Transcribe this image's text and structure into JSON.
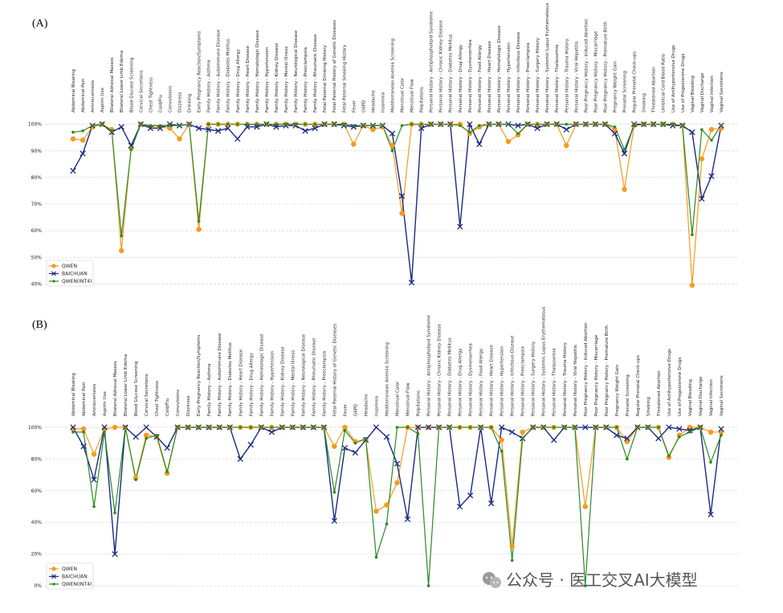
{
  "watermark": {
    "text": "公众号 · 医工交叉AI大模型",
    "icon": "wechat-icon"
  },
  "colors": {
    "QWEN": "#f59a1e",
    "BAICHUAN": "#1b2a80",
    "QWEN(INT4)": "#2a8a22"
  },
  "categories_a": [
    "Abdominal Bloating",
    "Abdominal Pain",
    "Amniocentesis",
    "Aspirin Use",
    "Bilateral Adnexal Masses",
    "Bilateral Lower Limb Edema",
    "Blood Glucose Screening",
    "Cervical Secretions",
    "Chest Tightness",
    "Cold/Flu",
    "Convulsions",
    "Dizziness",
    "Drinking",
    "Early Pregnancy Reaction/Symptoms",
    "Family History - Asthma",
    "Family History - Autoimmune Disease",
    "Family History - Diabetes Mellitus",
    "Family History - Drug Allergy",
    "Family History - Heart Disease",
    "Family History - Hematologic Disease",
    "Family History - Hypertension",
    "Family History - Kidney Disease",
    "Family History - Mental Illness",
    "Family History - Neurological Disease",
    "Family History - Preeclampsia",
    "Family History - Rheumatic Disease",
    "Fetal Paternal Drinking History",
    "Fetal Paternal History of Genetic Diseases",
    "Fetal Paternal Smoking History",
    "Fever",
    "G6PD",
    "Headache",
    "Insomnia",
    "Mediterranean Anemia Screening",
    "Menstrual Color",
    "Menstrual Flow",
    "Palpitations",
    "Personal History - Antiphospholipid Syndrome",
    "Personal History - Chronic Kidney Disease",
    "Personal History - Diabetes Mellitus",
    "Personal History - Drug Allergy",
    "Personal History - Dysmenorrhea",
    "Personal History - Food Allergy",
    "Personal History - Heart Disease",
    "Personal History - Hematologic Disease",
    "Personal History - Hypertension",
    "Personal History - Infectious Disease",
    "Personal History - Preeclampsia",
    "Personal History - Surgery History",
    "Personal History - Systemic Lupus Erythematosus",
    "Personal History - Thalassemia",
    "Personal History - Trauma History",
    "Personal History - Viral Hepatitis",
    "Poor Pregnancy History - Induced Abortion",
    "Poor Pregnancy History - Miscarriage",
    "Poor Pregnancy History - Premature Birth",
    "Pregnancy Weight Gain",
    "Prenatal Screening",
    "Regular Prenatal Check-ups",
    "Smoking",
    "Threatened Abortion",
    "Umbilical Cord Blood Ratio",
    "Use of Antihypertensive Drugs",
    "Use of Progesterone Drugs",
    "Vaginal Bleeding",
    "Vaginal Discharge",
    "Vaginal Infection",
    "Vaginal Secretions"
  ],
  "categories_b": [
    "Abdominal Bloating",
    "Abdominal Pain",
    "Amniocentesis",
    "Aspirin Use",
    "Bilateral Adnexal Masses",
    "Bilateral Lower Limb Edema",
    "Blood Glucose Screening",
    "Cervical Secretions",
    "Chest Tightness",
    "Cold/Flu",
    "Convulsions",
    "Dizziness",
    "Early Pregnancy Reaction/Symptoms",
    "Family History - Asthma",
    "Family History - Autoimmune Disease",
    "Family History - Diabetes Mellitus",
    "Family History - Heart Disease",
    "Family History - Drug Allergy",
    "Family History - Hematologic Disease",
    "Family History - Hypertension",
    "Family History - Kidney Disease",
    "Family History - Mental Illness",
    "Family History - Neurological Disease",
    "Family History - Rheumatic Disease",
    "Family History - Preeclampsia",
    "Fetal Paternal History of Genetic Diseases",
    "Fever",
    "G6PD",
    "Headache",
    "Insomnia",
    "Mediterranean Anemia Screening",
    "Menstrual Color",
    "Menstrual Flow",
    "Palpitations",
    "Personal History - Antiphospholipid Syndrome",
    "Personal History - Chronic Kidney Disease",
    "Personal History - Diabetes Mellitus",
    "Personal History - Drug Allergy",
    "Personal History - Dysmenorrhea",
    "Personal History - Food Allergy",
    "Personal History - Heart Disease",
    "Personal History - Hypertension",
    "Personal History - Infectious Disease",
    "Personal History - Preeclampsia",
    "Personal History - Surgery History",
    "Personal History - Systemic Lupus Erythematosus",
    "Personal History - Thalassemia",
    "Personal History - Trauma History",
    "Personal History - Viral Hepatitis",
    "Poor Pregnancy History - Induced Abortion",
    "Poor Pregnancy History - Miscarriage",
    "Poor Pregnancy History - Premature Birth",
    "Pregnancy Weight Gain",
    "Prenatal Screening",
    "Regular Prenatal Check-ups",
    "Smoking",
    "Threatened Abortion",
    "Use of Antihypertensive Drugs",
    "Use of Progesterone Drugs",
    "Vaginal Bleeding",
    "Vaginal Discharge",
    "Vaginal Infection",
    "Vaginal Secretions"
  ],
  "chart_data": [
    {
      "type": "line",
      "panel_label": "(A)",
      "categories_key": "categories_a",
      "ylim": [
        38,
        102
      ],
      "yticks": [
        40,
        50,
        60,
        70,
        80,
        90,
        100
      ],
      "ytick_labels": [
        "40%",
        "50%",
        "60%",
        "70%",
        "80%",
        "90%",
        "100%"
      ],
      "grid": true,
      "legend_position": "bottom-left",
      "series": [
        {
          "name": "QWEN",
          "marker": "circle",
          "values": [
            94.5,
            94,
            99,
            100,
            98,
            52.5,
            91,
            100,
            99,
            99,
            98.5,
            94.5,
            100,
            60.5,
            100,
            100,
            100,
            100,
            100,
            100,
            100,
            100,
            100,
            100,
            100,
            100,
            100,
            100,
            100,
            92.5,
            99.5,
            98,
            99,
            92,
            66.5,
            100,
            100,
            100,
            100,
            100,
            100,
            96.5,
            99,
            100,
            100,
            93.5,
            96,
            100,
            100,
            100,
            100,
            92,
            100,
            100,
            100,
            100,
            98,
            75.5,
            99.5,
            100,
            100,
            100,
            100,
            99.5,
            39.5,
            87,
            98,
            98.5
          ]
        },
        {
          "name": "BAICHUAN",
          "marker": "x",
          "values": [
            82.5,
            89,
            99.5,
            100,
            97,
            99,
            92,
            100,
            98.5,
            98.5,
            100,
            99.5,
            100,
            98.5,
            98,
            97.5,
            98.5,
            94.5,
            99,
            99,
            100,
            99,
            99.5,
            99.5,
            97.5,
            98.5,
            100,
            100,
            99.5,
            99,
            99.5,
            99.5,
            99.5,
            96.5,
            73,
            40.5,
            98.5,
            100,
            100,
            100,
            61.5,
            100,
            92.5,
            100,
            100,
            100,
            99.5,
            100,
            98.5,
            100,
            100,
            98,
            100,
            100,
            100,
            100,
            96.5,
            89,
            100,
            100,
            100,
            100,
            99.5,
            99.5,
            97,
            72,
            80.5,
            99.5
          ]
        },
        {
          "name": "QWEN(INT4)",
          "marker": "dot",
          "values": [
            97,
            97.5,
            99.5,
            100,
            97.5,
            58,
            90.5,
            100,
            99.5,
            99.5,
            99.5,
            99.5,
            100,
            63.5,
            100,
            100,
            100,
            100,
            100,
            100,
            100,
            100,
            100,
            100,
            100,
            100,
            100,
            100,
            100,
            99.5,
            99.5,
            99.5,
            99.5,
            90,
            99.5,
            100,
            100,
            100,
            100,
            100,
            99.5,
            97,
            99.5,
            100,
            100,
            100,
            96.5,
            100,
            100,
            100,
            100,
            100,
            100,
            100,
            100,
            100,
            99,
            90.5,
            99.5,
            100,
            100,
            100,
            100,
            99.5,
            58.5,
            98,
            94,
            99.5
          ]
        }
      ]
    },
    {
      "type": "line",
      "panel_label": "(B)",
      "categories_key": "categories_b",
      "ylim": [
        -4,
        104
      ],
      "yticks": [
        0,
        20,
        40,
        60,
        80,
        100
      ],
      "ytick_labels": [
        "0%",
        "20%",
        "40%",
        "60%",
        "80%",
        "100%"
      ],
      "grid": true,
      "legend_position": "bottom-left",
      "series": [
        {
          "name": "QWEN",
          "marker": "circle",
          "values": [
            99,
            99,
            83,
            99,
            100,
            100,
            68,
            95,
            94,
            71,
            100,
            100,
            100,
            100,
            100,
            100,
            100,
            100,
            100,
            100,
            100,
            100,
            100,
            100,
            100,
            88,
            100,
            91,
            92,
            47,
            51,
            65,
            100,
            100,
            100,
            100,
            100,
            100,
            100,
            100,
            100,
            92,
            25,
            97,
            100,
            100,
            100,
            100,
            100,
            50,
            100,
            100,
            100,
            91,
            100,
            100,
            100,
            81,
            95,
            100,
            100,
            97,
            97
          ]
        },
        {
          "name": "BAICHUAN",
          "marker": "x",
          "values": [
            100,
            88,
            67,
            100,
            20,
            100,
            94,
            100,
            94,
            87,
            100,
            100,
            100,
            100,
            100,
            100,
            80,
            89,
            100,
            97,
            100,
            100,
            100,
            100,
            100,
            41,
            87,
            84,
            92,
            100,
            94,
            77,
            42,
            100,
            100,
            100,
            100,
            50,
            57,
            100,
            52,
            100,
            97,
            93,
            100,
            100,
            92,
            100,
            100,
            100,
            100,
            100,
            95,
            93,
            100,
            100,
            93,
            100,
            99,
            98,
            100,
            45,
            99
          ]
        },
        {
          "name": "QWEN(INT4)",
          "marker": "dot",
          "values": [
            97,
            97,
            50,
            97,
            46,
            100,
            67,
            93,
            95,
            72,
            100,
            100,
            100,
            100,
            100,
            100,
            100,
            100,
            100,
            100,
            100,
            100,
            100,
            100,
            100,
            59,
            98,
            90,
            93,
            18,
            39,
            100,
            100,
            96,
            0,
            100,
            100,
            100,
            100,
            100,
            100,
            85,
            16,
            93,
            100,
            100,
            100,
            100,
            100,
            0,
            100,
            100,
            100,
            80,
            100,
            100,
            100,
            82,
            94,
            97,
            100,
            78,
            95
          ]
        }
      ]
    }
  ]
}
